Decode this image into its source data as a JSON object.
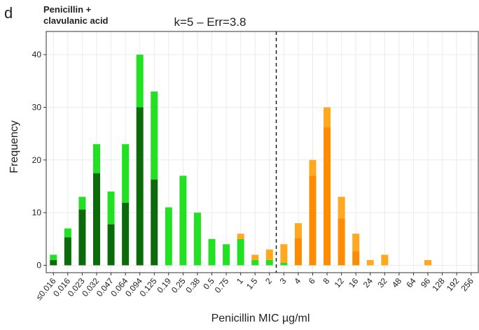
{
  "chart_data": {
    "type": "stacked_bar",
    "panel_label": "d",
    "subtitle": "Penicillin +\nclavulanic acid",
    "title": "k=5 – Err=3.8",
    "x_label": "Penicillin MIC µg/ml",
    "y_label": "Frequency",
    "categories": [
      "≤0.016",
      "0.016",
      "0.023",
      "0.032",
      "0.047",
      "0.064",
      "0.094",
      "0.125",
      "0.19",
      "0.25",
      "0.38",
      "0.5",
      "0.75",
      "1",
      "1.5",
      "2",
      "3",
      "4",
      "6",
      "8",
      "12",
      "16",
      "24",
      "32",
      "48",
      "64",
      "96",
      "128",
      "192",
      "256"
    ],
    "series": [
      {
        "color": "#0b6b0b",
        "values": [
          1,
          5.3,
          10.6,
          17.5,
          7.8,
          11.9,
          30,
          16.3,
          0,
          0,
          0,
          0,
          0,
          0,
          0,
          0,
          0,
          0,
          0,
          0,
          0,
          0,
          0,
          0,
          0,
          0,
          0,
          0,
          0,
          0
        ]
      },
      {
        "color": "#22e022",
        "values": [
          1,
          1.7,
          2.4,
          5.5,
          6.2,
          11.1,
          10,
          16.7,
          11,
          17,
          10,
          5,
          4,
          5,
          1,
          1,
          0.5,
          0,
          0,
          0,
          0,
          0,
          0,
          0,
          0,
          0,
          0,
          0,
          0,
          0
        ]
      },
      {
        "color": "#ff8c00",
        "values": [
          0,
          0,
          0,
          0,
          0,
          0,
          0,
          0,
          0,
          0,
          0,
          0,
          0,
          0,
          0,
          0,
          0,
          5.2,
          17,
          26.2,
          8.9,
          2.7,
          0,
          0,
          0,
          0,
          0,
          0,
          0,
          0
        ]
      },
      {
        "color": "#ffa820",
        "values": [
          0,
          0,
          0,
          0,
          0,
          0,
          0,
          0,
          0,
          0,
          0,
          0,
          0,
          1,
          1,
          2,
          3.5,
          2.8,
          3,
          3.8,
          4.1,
          3.3,
          1,
          2,
          0,
          0,
          1,
          0,
          0,
          0
        ]
      }
    ],
    "ylim": [
      -1.4,
      44.4
    ],
    "yticks": [
      0,
      10,
      20,
      30,
      40
    ],
    "grid": true
  }
}
